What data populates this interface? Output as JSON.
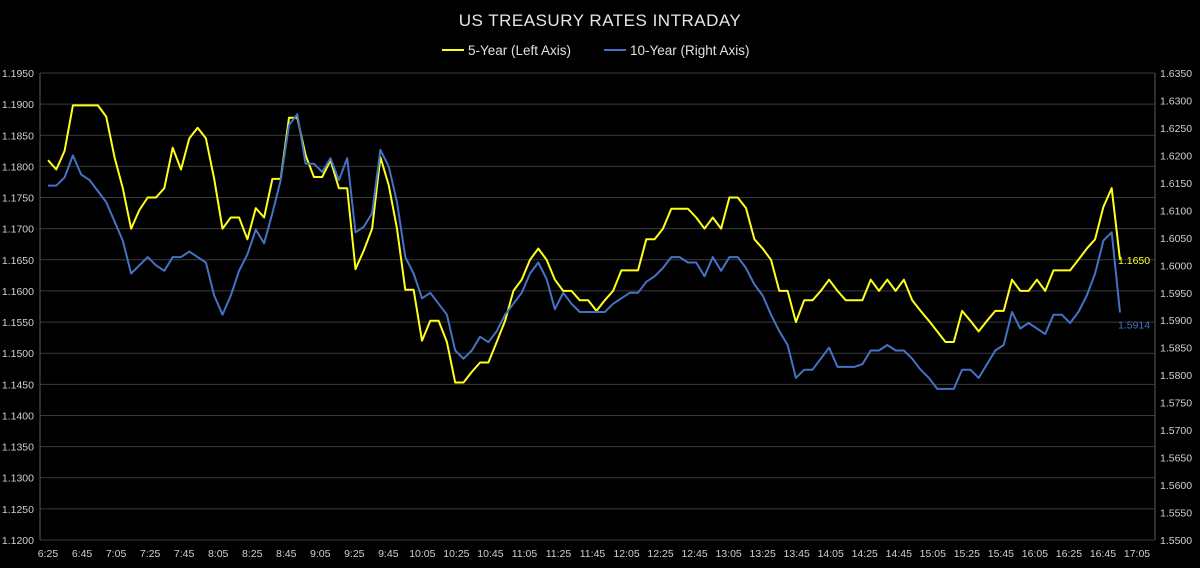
{
  "chart_data": {
    "type": "line",
    "title": "US TREASURY RATES INTRADAY",
    "legend_position": "top-center",
    "grid": true,
    "x_tick_labels": [
      "6:25",
      "6:45",
      "7:05",
      "7:25",
      "7:45",
      "8:05",
      "8:25",
      "8:45",
      "9:05",
      "9:25",
      "9:45",
      "10:05",
      "10:25",
      "10:45",
      "11:05",
      "11:25",
      "11:45",
      "12:05",
      "12:25",
      "12:45",
      "13:05",
      "13:25",
      "13:45",
      "14:05",
      "14:25",
      "14:45",
      "15:05",
      "15:25",
      "15:45",
      "16:05",
      "16:25",
      "16:45",
      "17:05"
    ],
    "y_left": {
      "min": 1.12,
      "max": 1.195,
      "step": 0.005,
      "ticks": [
        "1.1200",
        "1.1250",
        "1.1300",
        "1.1350",
        "1.1400",
        "1.1450",
        "1.1500",
        "1.1550",
        "1.1600",
        "1.1650",
        "1.1700",
        "1.1750",
        "1.1800",
        "1.1850",
        "1.1900",
        "1.1950"
      ]
    },
    "y_right": {
      "min": 1.55,
      "max": 1.635,
      "step": 0.005,
      "ticks": [
        "1.5500",
        "1.5550",
        "1.5600",
        "1.5650",
        "1.5700",
        "1.5750",
        "1.5800",
        "1.5850",
        "1.5900",
        "1.5950",
        "1.6000",
        "1.6050",
        "1.6100",
        "1.6150",
        "1.6200",
        "1.6250",
        "1.6300",
        "1.6350"
      ]
    },
    "series": [
      {
        "name": "5-Year (Left Axis)",
        "axis": "left",
        "color": "#ffff1a",
        "last_label": "1.1650",
        "values": [
          1.181,
          1.1795,
          1.1825,
          1.1898,
          1.1898,
          1.1898,
          1.1898,
          1.188,
          1.1815,
          1.1765,
          1.17,
          1.173,
          1.175,
          1.175,
          1.1765,
          1.183,
          1.1795,
          1.1845,
          1.1862,
          1.1845,
          1.178,
          1.17,
          1.1718,
          1.1718,
          1.1683,
          1.1733,
          1.1718,
          1.178,
          1.178,
          1.1878,
          1.1878,
          1.1818,
          1.1783,
          1.1783,
          1.181,
          1.1765,
          1.1765,
          1.1635,
          1.1665,
          1.17,
          1.1815,
          1.177,
          1.17,
          1.1602,
          1.1602,
          1.152,
          1.1552,
          1.1552,
          1.1518,
          1.1453,
          1.1453,
          1.147,
          1.1485,
          1.1485,
          1.1518,
          1.1552,
          1.16,
          1.1618,
          1.165,
          1.1668,
          1.165,
          1.1618,
          1.16,
          1.16,
          1.1585,
          1.1585,
          1.1568,
          1.1585,
          1.16,
          1.1633,
          1.1633,
          1.1633,
          1.1683,
          1.1683,
          1.17,
          1.1732,
          1.1732,
          1.1732,
          1.1718,
          1.17,
          1.1718,
          1.17,
          1.175,
          1.175,
          1.1733,
          1.1683,
          1.1668,
          1.165,
          1.16,
          1.16,
          1.155,
          1.1585,
          1.1585,
          1.16,
          1.1618,
          1.16,
          1.1585,
          1.1585,
          1.1585,
          1.1618,
          1.16,
          1.1618,
          1.16,
          1.1618,
          1.1585,
          1.1568,
          1.1552,
          1.1535,
          1.1518,
          1.1518,
          1.1568,
          1.1552,
          1.1535,
          1.1552,
          1.1568,
          1.1568,
          1.1618,
          1.16,
          1.16,
          1.1618,
          1.16,
          1.1633,
          1.1633,
          1.1633,
          1.165,
          1.1668,
          1.1683,
          1.1735,
          1.1765,
          1.165
        ]
      },
      {
        "name": "10-Year (Right Axis)",
        "axis": "right",
        "color": "#4472c4",
        "last_label": "1.5914",
        "values": [
          1.6145,
          1.6145,
          1.616,
          1.62,
          1.6165,
          1.6155,
          1.6135,
          1.6115,
          1.608,
          1.6045,
          1.5985,
          1.6,
          1.6015,
          1.6,
          1.599,
          1.6015,
          1.6015,
          1.6025,
          1.6015,
          1.6005,
          1.5945,
          1.591,
          1.5945,
          1.599,
          1.602,
          1.6065,
          1.604,
          1.6095,
          1.6155,
          1.6255,
          1.6275,
          1.6185,
          1.6185,
          1.617,
          1.6195,
          1.6155,
          1.6195,
          1.606,
          1.607,
          1.6095,
          1.621,
          1.618,
          1.6115,
          1.6015,
          1.5985,
          1.594,
          1.595,
          1.593,
          1.591,
          1.5845,
          1.583,
          1.5845,
          1.587,
          1.586,
          1.588,
          1.591,
          1.593,
          1.595,
          1.5985,
          1.6005,
          1.5975,
          1.592,
          1.595,
          1.593,
          1.5915,
          1.5915,
          1.5915,
          1.5915,
          1.593,
          1.594,
          1.595,
          1.595,
          1.597,
          1.598,
          1.5995,
          1.6015,
          1.6015,
          1.6005,
          1.6005,
          1.598,
          1.6015,
          1.599,
          1.6015,
          1.6015,
          1.5995,
          1.5965,
          1.5945,
          1.591,
          1.588,
          1.5855,
          1.5795,
          1.581,
          1.581,
          1.583,
          1.585,
          1.5815,
          1.5815,
          1.5815,
          1.582,
          1.5845,
          1.5845,
          1.5855,
          1.5845,
          1.5845,
          1.583,
          1.581,
          1.5795,
          1.5775,
          1.5775,
          1.5775,
          1.581,
          1.581,
          1.5795,
          1.582,
          1.5845,
          1.5855,
          1.5915,
          1.5885,
          1.5895,
          1.5885,
          1.5875,
          1.591,
          1.591,
          1.5895,
          1.5915,
          1.5945,
          1.5985,
          1.6045,
          1.606,
          1.5914
        ]
      }
    ]
  }
}
